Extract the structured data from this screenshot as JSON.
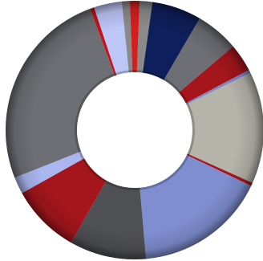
{
  "chart_data": {
    "type": "pie",
    "variant": "donut",
    "title": "",
    "legend": "none",
    "slices": [
      {
        "value": 1.6,
        "color": "#8a8a8a"
      },
      {
        "value": 6.2,
        "color": "#0f1f5c"
      },
      {
        "value": 5.4,
        "color": "#6e6f74"
      },
      {
        "value": 3.5,
        "color": "#a4161c"
      },
      {
        "value": 0.4,
        "color": "#7a89c8"
      },
      {
        "value": 14.0,
        "color": "#b5b3aa"
      },
      {
        "value": 0.4,
        "color": "#a4161c"
      },
      {
        "value": 16.5,
        "color": "#7f8ed0"
      },
      {
        "value": 9.6,
        "color": "#4f5054"
      },
      {
        "value": 8.7,
        "color": "#a4161c"
      },
      {
        "value": 2.1,
        "color": "#aab6f0"
      },
      {
        "value": 25.4,
        "color": "#6e6f74"
      },
      {
        "value": 0.5,
        "color": "#c4131a"
      },
      {
        "value": 3.5,
        "color": "#bcc6f7"
      },
      {
        "value": 1.0,
        "color": "#8a8a8a"
      },
      {
        "value": 1.2,
        "color": "#d41f1f"
      }
    ]
  }
}
